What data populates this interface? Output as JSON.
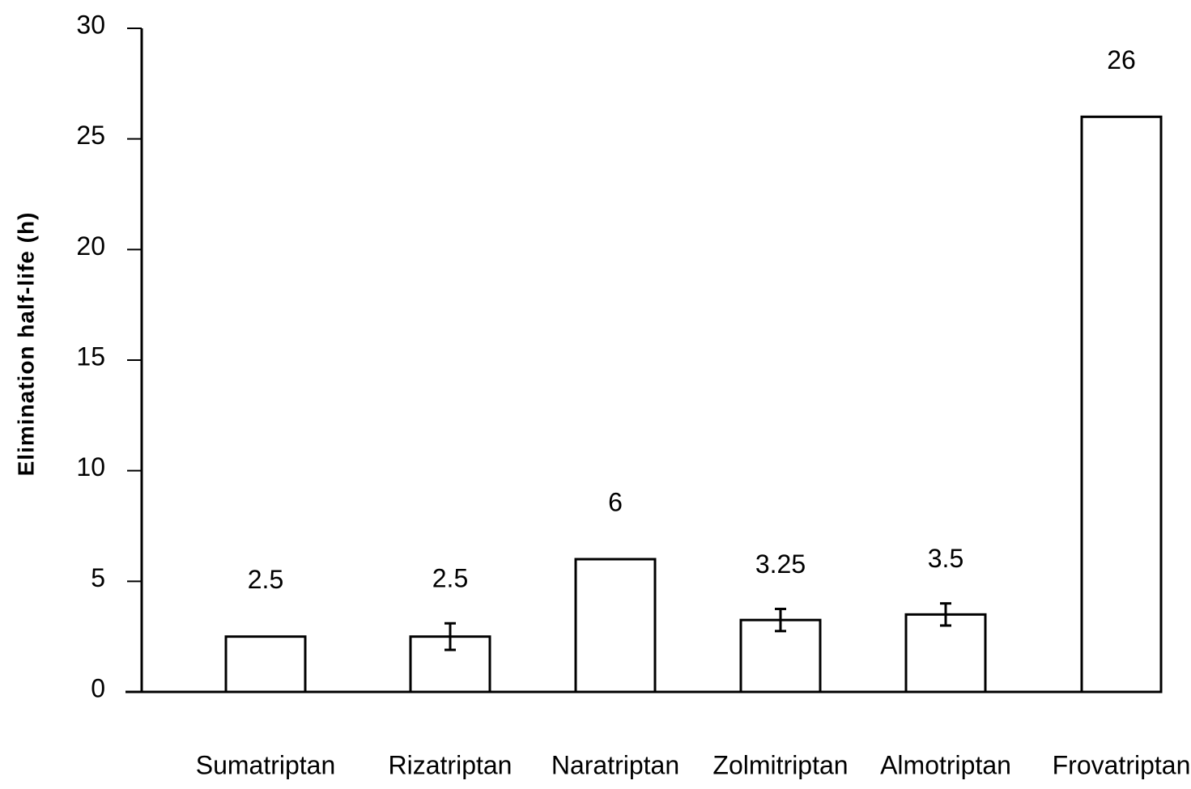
{
  "chart_data": {
    "type": "bar",
    "y_label": "Elimination half-life (h)",
    "categories": [
      "Sumatriptan",
      "Rizatriptan",
      "Naratriptan",
      "Zolmitriptan",
      "Almotriptan",
      "Frovatriptan"
    ],
    "values": [
      2.5,
      2.5,
      6,
      3.25,
      3.5,
      26
    ],
    "errors": [
      null,
      0.6,
      null,
      0.5,
      0.5,
      null
    ],
    "color": "#ffffff",
    "ylim": [
      0,
      30
    ],
    "yticks": [
      0,
      5,
      10,
      15,
      20,
      25,
      30
    ],
    "grid": false
  }
}
